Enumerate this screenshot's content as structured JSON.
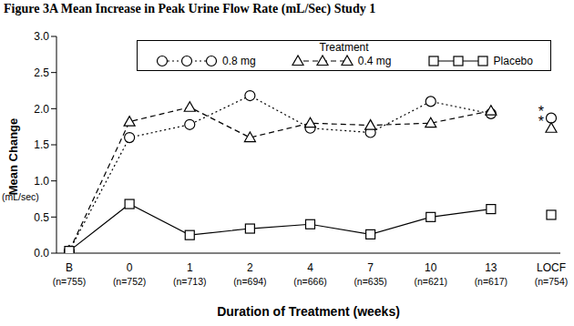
{
  "chart_data": {
    "type": "line",
    "title": "Figure 3A Mean Increase in Peak Urine Flow Rate (mL/Sec) Study 1",
    "x_label": "Duration of Treatment (weeks)",
    "y_label": "Mean Change",
    "y_unit_label": "(mL/sec)",
    "categories": [
      "B",
      "0",
      "1",
      "2",
      "4",
      "7",
      "10",
      "13",
      "LOCF"
    ],
    "sample_sizes": [
      "(n=755)",
      "(n=752)",
      "(n=713)",
      "(n=694)",
      "(n=666)",
      "(n=635)",
      "(n=621)",
      "(n=617)",
      "(n=754)"
    ],
    "legend_title": "Treatment",
    "legend": "top",
    "grid": false,
    "ylim": [
      0,
      3
    ],
    "yticks": [
      {
        "value": 0,
        "label": "0.0"
      },
      0.5,
      {
        "value": 1,
        "label": "1.0"
      },
      1.5,
      {
        "value": 2,
        "label": "2.0"
      },
      2.5,
      {
        "value": 3,
        "label": "3.0"
      }
    ],
    "series": [
      {
        "name": "0.8 mg",
        "color": "#000000",
        "marker": "circle",
        "line_style": "dotted",
        "values": [
          0.03,
          1.6,
          1.78,
          2.18,
          1.73,
          1.67,
          2.1,
          1.93,
          1.87
        ]
      },
      {
        "name": "0.4 mg",
        "color": "#000000",
        "marker": "triangle",
        "line_style": "dashed",
        "values": [
          0.03,
          1.82,
          2.02,
          1.6,
          1.8,
          1.77,
          1.8,
          1.97,
          1.73
        ]
      },
      {
        "name": "Placebo",
        "color": "#000000",
        "marker": "square",
        "line_style": "solid",
        "values": [
          0.03,
          0.68,
          0.25,
          0.34,
          0.4,
          0.26,
          0.5,
          0.61,
          0.53
        ]
      }
    ],
    "annotations": [
      {
        "text": "*",
        "series": "0.8 mg",
        "category": "LOCF"
      },
      {
        "text": "*",
        "series": "0.4 mg",
        "category": "LOCF"
      }
    ]
  }
}
